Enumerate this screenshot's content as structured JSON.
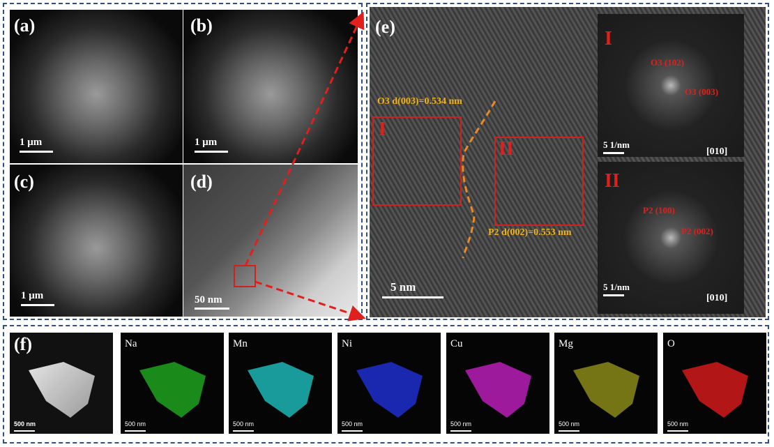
{
  "panels": {
    "a": "(a)",
    "b": "(b)",
    "c": "(c)",
    "d": "(d)",
    "e": "(e)",
    "f": "(f)"
  },
  "scalebars": {
    "a": "1 μm",
    "b": "1 μm",
    "c": "1 μm",
    "d": "50 nm",
    "e": "5 nm",
    "fft1": "5 1/nm",
    "fft2": "5 1/nm"
  },
  "hrtem": {
    "region1": "I",
    "region2": "II",
    "o3_label": "O3 d(003)=0.534 nm",
    "p2_label": "P2 d(002)=0.553 nm"
  },
  "fft": {
    "top": {
      "roman": "I",
      "spot1": "O3 (102)",
      "spot2": "O3 (003)",
      "zone": "[010]"
    },
    "bottom": {
      "roman": "II",
      "spot1": "P2 (100)",
      "spot2": "P2 (002)",
      "zone": "[010]"
    }
  },
  "mapping": {
    "haadf_scale": "500 nm",
    "elements": [
      {
        "name": "Na",
        "color": "#1fa21f",
        "scale": "500 nm"
      },
      {
        "name": "Mn",
        "color": "#1fb6b6",
        "scale": "500 nm"
      },
      {
        "name": "Ni",
        "color": "#1f2fcf",
        "scale": "500 nm"
      },
      {
        "name": "Cu",
        "color": "#b81fb8",
        "scale": "500 nm"
      },
      {
        "name": "Mg",
        "color": "#8a8a1a",
        "scale": "500 nm"
      },
      {
        "name": "O",
        "color": "#d21a1a",
        "scale": "500 nm"
      }
    ]
  },
  "colors": {
    "frame": "#2f4f7f",
    "red": "#d0211c",
    "yellow": "#f0b21a"
  }
}
